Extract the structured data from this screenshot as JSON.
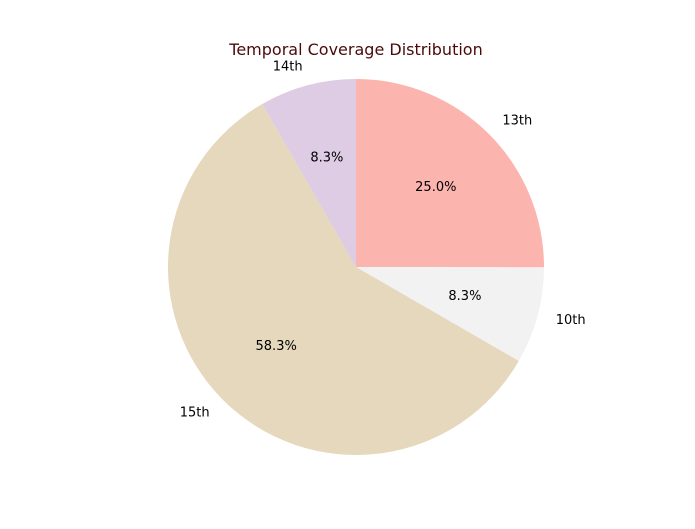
{
  "chart_data": {
    "type": "pie",
    "title": "Temporal Coverage Distribution",
    "slices": [
      {
        "label": "13th",
        "value": 25.0,
        "percent_label": "25.0%",
        "color": "#fbb4ae"
      },
      {
        "label": "10th",
        "value": 8.3,
        "percent_label": "8.3%",
        "color": "#f2f2f2"
      },
      {
        "label": "15th",
        "value": 58.3,
        "percent_label": "58.3%",
        "color": "#e5d8bd"
      },
      {
        "label": "14th",
        "value": 8.3,
        "percent_label": "8.3%",
        "color": "#decbe4"
      }
    ],
    "start_angle_deg": 90,
    "direction": "clockwise",
    "title_color": "#4a0a0a"
  }
}
